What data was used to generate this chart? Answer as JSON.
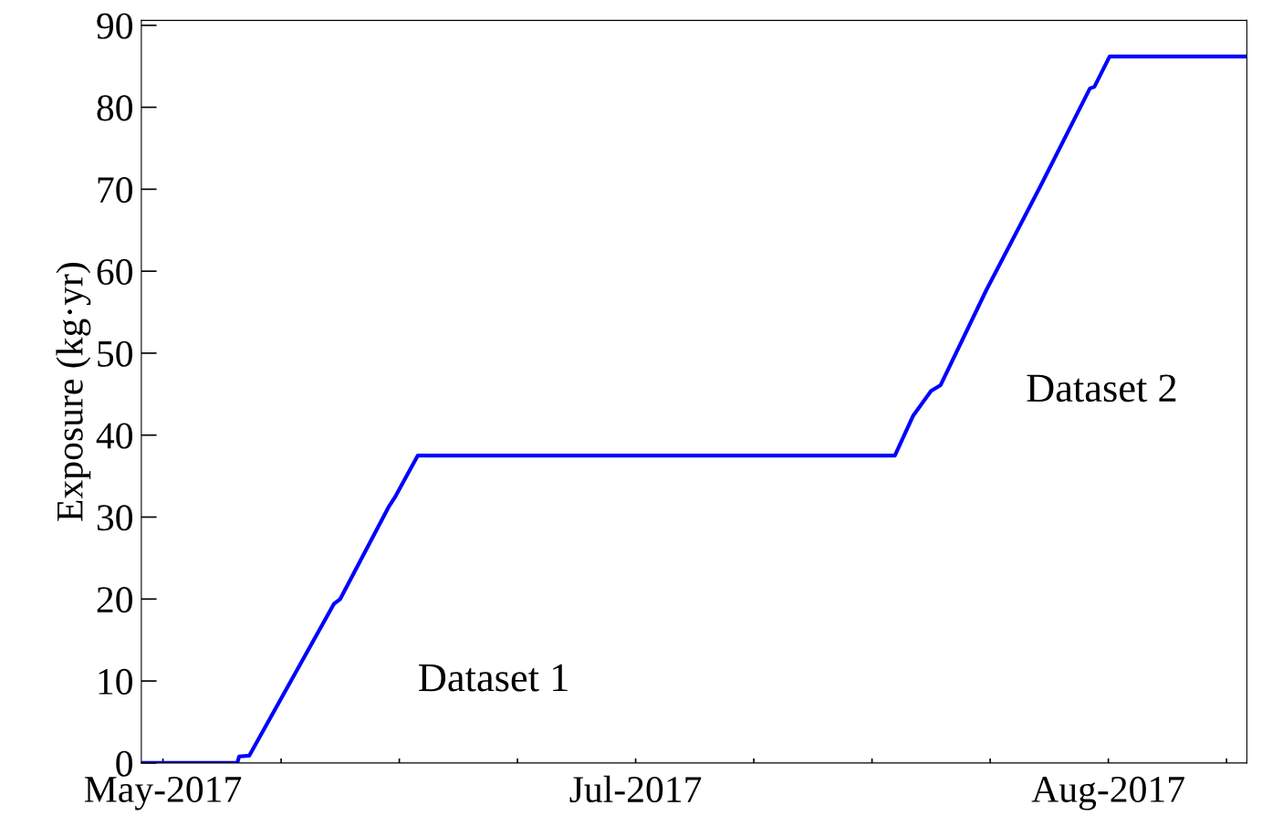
{
  "chart_data": {
    "type": "line",
    "ylabel": "Exposure (kg·yr)",
    "x": [
      "2017-05-29T14:00",
      "2017-06-04T21:00",
      "2017-06-05T00:00",
      "2017-06-05T16:00",
      "2017-06-05T21:00",
      "2017-06-11T05:00",
      "2017-06-11T15:00",
      "2017-06-14T19:00",
      "2017-06-15T05:00",
      "2017-06-16T17:00",
      "2017-07-18T00:00",
      "2017-07-19T05:00",
      "2017-07-20T09:00",
      "2017-07-21T00:00",
      "2017-07-24T00:00",
      "2017-07-27T14:00",
      "2017-07-30T19:00",
      "2017-07-31T02:00",
      "2017-08-01T02:00",
      "2017-08-10T02:00"
    ],
    "series": [
      {
        "color": "#0000ff",
        "values": [
          0,
          0,
          0.8,
          0.9,
          1.6,
          19.4,
          20.0,
          31.2,
          32.4,
          37.5,
          37.5,
          42.4,
          45.4,
          46.1,
          57.7,
          70.5,
          82.3,
          82.5,
          86.2,
          86.2
        ]
      }
    ],
    "xlim": [
      "2017-05-29T14:00",
      "2017-08-10T02:00"
    ],
    "xticks": [
      {
        "value": "2017-05-31",
        "label": "May-2017"
      },
      {
        "value": "2017-06-07T18:00",
        "label": null
      },
      {
        "value": "2017-06-15T12:00",
        "label": null
      },
      {
        "value": "2017-06-23T06:00",
        "label": null
      },
      {
        "value": "2017-07-01",
        "label": "Jul-2017"
      },
      {
        "value": "2017-07-08T18:00",
        "label": null
      },
      {
        "value": "2017-07-16T12:00",
        "label": null
      },
      {
        "value": "2017-07-24T06:00",
        "label": null
      },
      {
        "value": "2017-08-01",
        "label": "Aug-2017"
      },
      {
        "value": "2017-08-08T18:00",
        "label": null
      }
    ],
    "ylim": [
      0,
      90.6
    ],
    "yticks": [
      0,
      10,
      20,
      30,
      40,
      50,
      60,
      70,
      80,
      90
    ],
    "annotations": [
      "Dataset 1",
      "Dataset 2"
    ],
    "grid": false,
    "legend": false,
    "marker": "none",
    "line_style": "solid"
  }
}
